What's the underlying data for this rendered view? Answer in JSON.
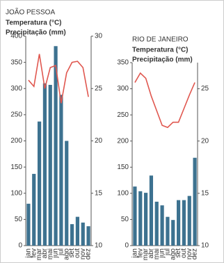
{
  "chart_data": [
    {
      "type": "bar",
      "title": "JOÃO PESSOA",
      "categories": [
        "jan",
        "fev",
        "mar",
        "abr",
        "mai",
        "jun",
        "jul",
        "ago",
        "set",
        "out",
        "nov",
        "dez"
      ],
      "series": [
        {
          "name": "Temperatura (°C)",
          "color": "#e0574f",
          "type": "line",
          "axis": "y2",
          "values": [
            25.8,
            25.2,
            28.3,
            25,
            27,
            27.2,
            23.6,
            26.5,
            27.5,
            27.6,
            27,
            24.2
          ]
        },
        {
          "name": "Precipitação (mm)",
          "color": "#3d7290",
          "type": "bar",
          "values": [
            80,
            137,
            237,
            310,
            307,
            381,
            288,
            200,
            41,
            55,
            44,
            37
          ]
        }
      ],
      "ylim": [
        0,
        400
      ],
      "yticks": [
        0,
        50,
        100,
        150,
        200,
        250,
        300,
        350,
        400
      ],
      "y2lim": [
        10,
        30
      ],
      "y2ticks": [
        10,
        15,
        20,
        25,
        30
      ]
    },
    {
      "type": "bar",
      "title": "RIO DE JANEIRO",
      "categories": [
        "jan",
        "fev",
        "mar",
        "abr",
        "mai",
        "jun",
        "jul",
        "ago",
        "set",
        "out",
        "nov",
        "dez"
      ],
      "series": [
        {
          "name": "Temperatura (°C)",
          "color": "#e0574f",
          "type": "line",
          "axis": "y2",
          "values": [
            25.6,
            26.5,
            26,
            24.3,
            22.9,
            21.5,
            21.3,
            21.8,
            21.8,
            23.1,
            24.4,
            25.6
          ]
        },
        {
          "name": "Precipitação (mm)",
          "color": "#3d7290",
          "type": "bar",
          "values": [
            113,
            104,
            101,
            134,
            84,
            77,
            55,
            49,
            87,
            87,
            95,
            168
          ]
        }
      ],
      "ylim": [
        0,
        350
      ],
      "yticks": [
        0,
        50,
        100,
        150,
        200,
        250,
        300,
        350
      ],
      "y2lim": [
        10,
        27.5
      ],
      "y2ticks": [
        10,
        15,
        20,
        25
      ]
    }
  ]
}
